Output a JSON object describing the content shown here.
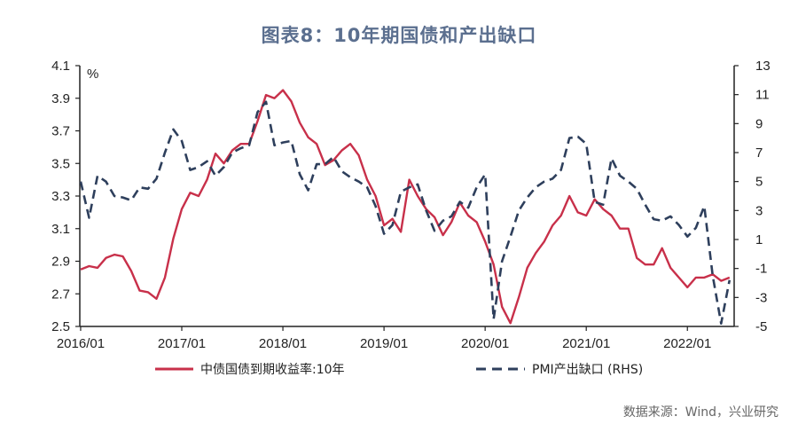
{
  "title": "图表8：10年期国债和产出缺口",
  "source": "数据来源：Wind，兴业研究",
  "colors": {
    "series1": "#c8304a",
    "series2": "#2e3f5c",
    "axis": "#222222"
  },
  "chart_data": {
    "type": "line",
    "left_axis": {
      "unit_label": "%",
      "range": [
        2.5,
        4.1
      ],
      "ticks": [
        "2.5",
        "2.7",
        "2.9",
        "3.1",
        "3.3",
        "3.5",
        "3.7",
        "3.9",
        "4.1"
      ]
    },
    "right_axis": {
      "range": [
        -5,
        13
      ],
      "ticks": [
        "-5",
        "-3",
        "-1",
        "1",
        "3",
        "5",
        "7",
        "9",
        "11",
        "13"
      ]
    },
    "x_axis": {
      "range": [
        "2016-01",
        "2022-06"
      ],
      "ticks": [
        "2016/01",
        "2017/01",
        "2018/01",
        "2019/01",
        "2020/01",
        "2021/01",
        "2022/01"
      ]
    },
    "legend": {
      "placement": "bottom"
    },
    "grid": false,
    "series": [
      {
        "name": "中债国债到期收益率:10年",
        "axis": "left",
        "style": "solid",
        "points": [
          [
            "2016-01",
            2.85
          ],
          [
            "2016-02",
            2.87
          ],
          [
            "2016-03",
            2.86
          ],
          [
            "2016-04",
            2.92
          ],
          [
            "2016-05",
            2.94
          ],
          [
            "2016-06",
            2.93
          ],
          [
            "2016-07",
            2.84
          ],
          [
            "2016-08",
            2.72
          ],
          [
            "2016-09",
            2.71
          ],
          [
            "2016-10",
            2.67
          ],
          [
            "2016-11",
            2.8
          ],
          [
            "2016-12",
            3.04
          ],
          [
            "2017-01",
            3.22
          ],
          [
            "2017-02",
            3.32
          ],
          [
            "2017-03",
            3.3
          ],
          [
            "2017-04",
            3.4
          ],
          [
            "2017-05",
            3.56
          ],
          [
            "2017-06",
            3.5
          ],
          [
            "2017-07",
            3.58
          ],
          [
            "2017-08",
            3.62
          ],
          [
            "2017-09",
            3.62
          ],
          [
            "2017-10",
            3.76
          ],
          [
            "2017-11",
            3.92
          ],
          [
            "2017-12",
            3.9
          ],
          [
            "2018-01",
            3.95
          ],
          [
            "2018-02",
            3.88
          ],
          [
            "2018-03",
            3.75
          ],
          [
            "2018-04",
            3.66
          ],
          [
            "2018-05",
            3.62
          ],
          [
            "2018-06",
            3.49
          ],
          [
            "2018-07",
            3.52
          ],
          [
            "2018-08",
            3.58
          ],
          [
            "2018-09",
            3.62
          ],
          [
            "2018-10",
            3.55
          ],
          [
            "2018-11",
            3.4
          ],
          [
            "2018-12",
            3.3
          ],
          [
            "2019-01",
            3.12
          ],
          [
            "2019-02",
            3.16
          ],
          [
            "2019-03",
            3.08
          ],
          [
            "2019-04",
            3.4
          ],
          [
            "2019-05",
            3.3
          ],
          [
            "2019-06",
            3.22
          ],
          [
            "2019-07",
            3.17
          ],
          [
            "2019-08",
            3.06
          ],
          [
            "2019-09",
            3.14
          ],
          [
            "2019-10",
            3.26
          ],
          [
            "2019-11",
            3.18
          ],
          [
            "2019-12",
            3.14
          ],
          [
            "2020-01",
            3.02
          ],
          [
            "2020-02",
            2.88
          ],
          [
            "2020-03",
            2.62
          ],
          [
            "2020-04",
            2.52
          ],
          [
            "2020-05",
            2.68
          ],
          [
            "2020-06",
            2.86
          ],
          [
            "2020-07",
            2.95
          ],
          [
            "2020-08",
            3.02
          ],
          [
            "2020-09",
            3.12
          ],
          [
            "2020-10",
            3.18
          ],
          [
            "2020-11",
            3.3
          ],
          [
            "2020-12",
            3.2
          ],
          [
            "2021-01",
            3.18
          ],
          [
            "2021-02",
            3.28
          ],
          [
            "2021-03",
            3.22
          ],
          [
            "2021-04",
            3.18
          ],
          [
            "2021-05",
            3.1
          ],
          [
            "2021-06",
            3.1
          ],
          [
            "2021-07",
            2.92
          ],
          [
            "2021-08",
            2.88
          ],
          [
            "2021-09",
            2.88
          ],
          [
            "2021-10",
            2.98
          ],
          [
            "2021-11",
            2.86
          ],
          [
            "2021-12",
            2.8
          ],
          [
            "2022-01",
            2.74
          ],
          [
            "2022-02",
            2.8
          ],
          [
            "2022-03",
            2.8
          ],
          [
            "2022-04",
            2.82
          ],
          [
            "2022-05",
            2.78
          ],
          [
            "2022-06",
            2.8
          ]
        ]
      },
      {
        "name": "PMI产出缺口 (RHS)",
        "axis": "right",
        "style": "dashed",
        "points": [
          [
            "2016-01",
            5.0
          ],
          [
            "2016-02",
            2.5
          ],
          [
            "2016-03",
            5.4
          ],
          [
            "2016-04",
            5.0
          ],
          [
            "2016-05",
            4.0
          ],
          [
            "2016-06",
            3.9
          ],
          [
            "2016-07",
            3.7
          ],
          [
            "2016-08",
            4.6
          ],
          [
            "2016-09",
            4.5
          ],
          [
            "2016-10",
            5.2
          ],
          [
            "2016-11",
            7.0
          ],
          [
            "2016-12",
            8.6
          ],
          [
            "2017-01",
            7.8
          ],
          [
            "2017-02",
            5.8
          ],
          [
            "2017-03",
            6.0
          ],
          [
            "2017-04",
            6.4
          ],
          [
            "2017-05",
            5.4
          ],
          [
            "2017-06",
            6.0
          ],
          [
            "2017-07",
            7.0
          ],
          [
            "2017-08",
            7.3
          ],
          [
            "2017-09",
            7.5
          ],
          [
            "2017-10",
            9.8
          ],
          [
            "2017-11",
            10.5
          ],
          [
            "2017-12",
            7.5
          ],
          [
            "2018-01",
            7.7
          ],
          [
            "2018-02",
            7.8
          ],
          [
            "2018-03",
            5.5
          ],
          [
            "2018-04",
            4.4
          ],
          [
            "2018-05",
            6.2
          ],
          [
            "2018-06",
            6.2
          ],
          [
            "2018-07",
            6.7
          ],
          [
            "2018-08",
            5.7
          ],
          [
            "2018-09",
            5.3
          ],
          [
            "2018-10",
            5.0
          ],
          [
            "2018-11",
            4.6
          ],
          [
            "2018-12",
            3.3
          ],
          [
            "2019-01",
            1.4
          ],
          [
            "2019-02",
            2.0
          ],
          [
            "2019-03",
            4.3
          ],
          [
            "2019-04",
            4.6
          ],
          [
            "2019-05",
            4.8
          ],
          [
            "2019-06",
            3.0
          ],
          [
            "2019-07",
            1.6
          ],
          [
            "2019-08",
            2.3
          ],
          [
            "2019-09",
            2.6
          ],
          [
            "2019-10",
            3.6
          ],
          [
            "2019-11",
            3.2
          ],
          [
            "2019-12",
            4.6
          ],
          [
            "2020-01",
            5.5
          ],
          [
            "2020-02",
            -4.5
          ],
          [
            "2020-03",
            -0.5
          ],
          [
            "2020-04",
            1.2
          ],
          [
            "2020-05",
            3.0
          ],
          [
            "2020-06",
            3.9
          ],
          [
            "2020-07",
            4.6
          ],
          [
            "2020-08",
            5.0
          ],
          [
            "2020-09",
            5.2
          ],
          [
            "2020-10",
            5.8
          ],
          [
            "2020-11",
            8.0
          ],
          [
            "2020-12",
            8.1
          ],
          [
            "2021-01",
            7.6
          ],
          [
            "2021-02",
            3.6
          ],
          [
            "2021-03",
            3.4
          ],
          [
            "2021-04",
            6.6
          ],
          [
            "2021-05",
            5.4
          ],
          [
            "2021-06",
            5.0
          ],
          [
            "2021-07",
            4.5
          ],
          [
            "2021-08",
            3.4
          ],
          [
            "2021-09",
            2.4
          ],
          [
            "2021-10",
            2.3
          ],
          [
            "2021-11",
            2.6
          ],
          [
            "2021-12",
            2.0
          ],
          [
            "2022-01",
            1.2
          ],
          [
            "2022-02",
            1.8
          ],
          [
            "2022-03",
            3.3
          ],
          [
            "2022-04",
            -1.5
          ],
          [
            "2022-05",
            -4.8
          ],
          [
            "2022-06",
            -1.8
          ]
        ]
      }
    ]
  }
}
